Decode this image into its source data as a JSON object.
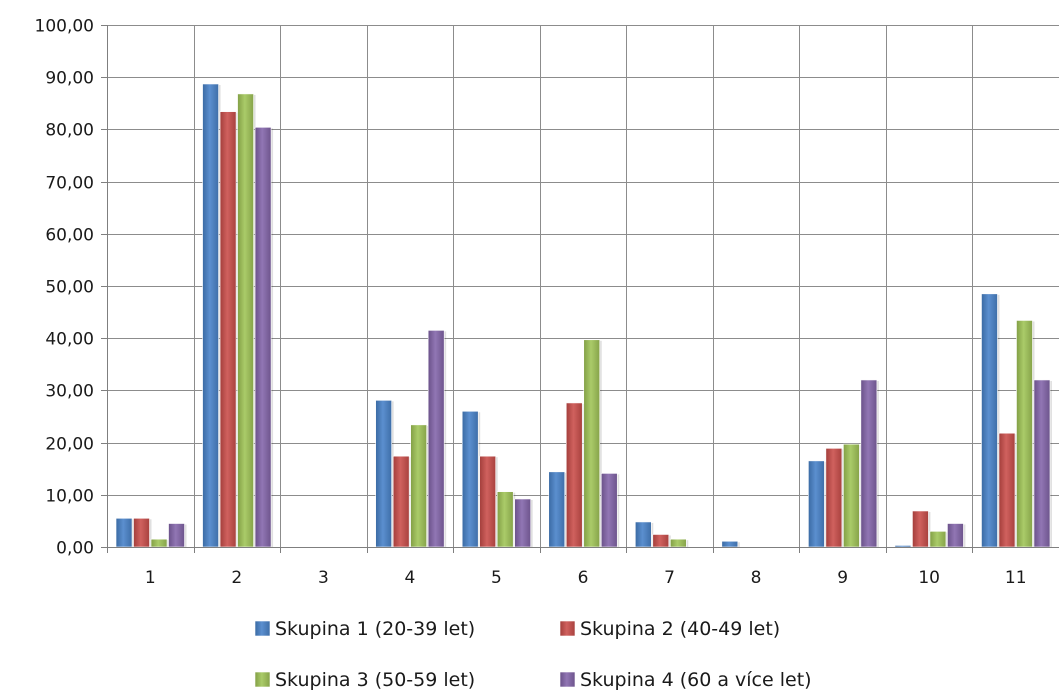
{
  "chart_data": {
    "type": "bar",
    "categories": [
      "1",
      "2",
      "3",
      "4",
      "5",
      "6",
      "7",
      "8",
      "9",
      "10",
      "11"
    ],
    "series": [
      {
        "name": "Skupina 1 (20-39 let)",
        "color": "#4f81bd",
        "values": [
          5.5,
          88.7,
          0,
          28.1,
          26.0,
          14.4,
          4.8,
          1.1,
          16.5,
          0.3,
          48.5
        ]
      },
      {
        "name": "Skupina 2 (40-49 let)",
        "color": "#c0504d",
        "values": [
          5.5,
          83.4,
          0,
          17.4,
          17.4,
          27.6,
          2.4,
          0,
          18.9,
          6.9,
          21.8
        ]
      },
      {
        "name": "Skupina 3 (50-59 let)",
        "color": "#9bbb59",
        "values": [
          1.5,
          86.8,
          0,
          23.4,
          10.6,
          39.7,
          1.5,
          0,
          19.7,
          3.0,
          43.4
        ]
      },
      {
        "name": "Skupina 4 (60 a více let)",
        "color": "#8064a2",
        "values": [
          4.5,
          80.4,
          0,
          41.5,
          9.2,
          14.1,
          0,
          0,
          32.0,
          4.5,
          32.0
        ]
      }
    ],
    "ylim": [
      0,
      100
    ],
    "yticks": [
      0,
      10,
      20,
      30,
      40,
      50,
      60,
      70,
      80,
      90,
      100
    ],
    "ytick_labels": [
      "0,00",
      "10,00",
      "20,00",
      "30,00",
      "40,00",
      "50,00",
      "60,00",
      "70,00",
      "80,00",
      "90,00",
      "100,00"
    ],
    "grid": true,
    "legend_position": "bottom",
    "title": "",
    "xlabel": "",
    "ylabel": ""
  }
}
